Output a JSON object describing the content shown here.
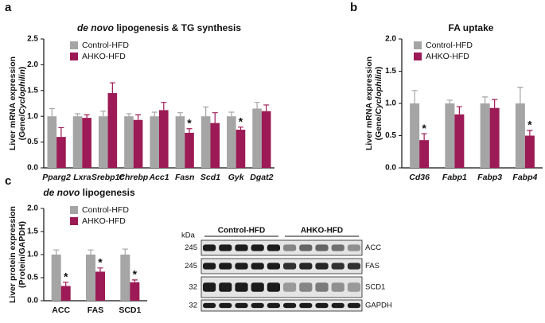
{
  "panel_labels": [
    "a",
    "b",
    "c"
  ],
  "chart_data": [
    {
      "type": "bar",
      "title_parts": [
        {
          "text": "de novo",
          "italic": true
        },
        {
          "text": " lipogenesis & TG synthesis"
        }
      ],
      "y_label_lines": [
        [
          {
            "text": "Liver mRNA expression"
          }
        ],
        [
          {
            "text": "(Gene/"
          },
          {
            "text": "Cyclophilin",
            "italic": true
          },
          {
            "text": ")"
          }
        ]
      ],
      "categories": [
        "Pparg2",
        "Lxra",
        "Srebp1c",
        "Chrebp",
        "Acc1",
        "Fasn",
        "Scd1",
        "Gyk",
        "Dgat2"
      ],
      "italic_categories": true,
      "series": [
        {
          "name": "Control-HFD",
          "color": "#a5a5a5",
          "values": [
            1.0,
            1.0,
            1.0,
            1.0,
            1.0,
            1.0,
            1.0,
            1.0,
            1.15
          ],
          "errors": [
            0.15,
            0.05,
            0.1,
            0.05,
            0.08,
            0.07,
            0.18,
            0.08,
            0.12
          ],
          "annotations": [
            null,
            null,
            null,
            null,
            null,
            null,
            null,
            null,
            null
          ]
        },
        {
          "name": "AHKO-HFD",
          "color": "#9c1a55",
          "values": [
            0.6,
            0.97,
            1.45,
            0.93,
            1.12,
            0.68,
            0.87,
            0.74,
            1.1
          ],
          "errors": [
            0.18,
            0.06,
            0.2,
            0.1,
            0.15,
            0.08,
            0.2,
            0.05,
            0.12
          ],
          "annotations": [
            null,
            null,
            null,
            null,
            null,
            "*",
            null,
            "*",
            null
          ]
        }
      ],
      "ylim": [
        0,
        2.5
      ],
      "yticks": [
        {
          "value": 0,
          "label": "0.0"
        },
        0.5,
        {
          "value": 1,
          "label": "1.0"
        },
        1.5,
        {
          "value": 2,
          "label": "2.0"
        },
        2.5
      ]
    },
    {
      "type": "bar",
      "title_parts": [
        {
          "text": "FA uptake"
        }
      ],
      "y_label_lines": [
        [
          {
            "text": "Liver mRNA expression"
          }
        ],
        [
          {
            "text": "(Gene/"
          },
          {
            "text": "Cyclophilin",
            "italic": true
          },
          {
            "text": ")"
          }
        ]
      ],
      "categories": [
        "Cd36",
        "Fabp1",
        "Fabp3",
        "Fabp4"
      ],
      "italic_categories": true,
      "series": [
        {
          "name": "Control-HFD",
          "color": "#a5a5a5",
          "values": [
            1.0,
            1.0,
            1.0,
            1.0
          ],
          "errors": [
            0.2,
            0.05,
            0.1,
            0.25
          ],
          "annotations": [
            null,
            null,
            null,
            null
          ]
        },
        {
          "name": "AHKO-HFD",
          "color": "#9c1a55",
          "values": [
            0.43,
            0.83,
            0.93,
            0.5
          ],
          "errors": [
            0.1,
            0.12,
            0.13,
            0.08
          ],
          "annotations": [
            "*",
            null,
            null,
            "*"
          ]
        }
      ],
      "ylim": [
        0,
        2
      ],
      "yticks": [
        {
          "value": 0,
          "label": "0.0"
        },
        0.5,
        {
          "value": 1,
          "label": "1.0"
        },
        1.5,
        {
          "value": 2,
          "label": "2.0"
        }
      ]
    },
    {
      "type": "bar",
      "title_parts": [
        {
          "text": "de novo",
          "italic": true
        },
        {
          "text": " lipogenesis"
        }
      ],
      "y_label_lines": [
        [
          {
            "text": "Liver protein expression"
          }
        ],
        [
          {
            "text": "(Protein/GAPDH)"
          }
        ]
      ],
      "categories": [
        "ACC",
        "FAS",
        "SCD1"
      ],
      "italic_categories": false,
      "series": [
        {
          "name": "Control-HFD",
          "color": "#a5a5a5",
          "values": [
            1.0,
            1.0,
            1.0
          ],
          "errors": [
            0.1,
            0.1,
            0.12
          ],
          "annotations": [
            null,
            null,
            null
          ]
        },
        {
          "name": "AHKO-HFD",
          "color": "#9c1a55",
          "values": [
            0.32,
            0.63,
            0.4
          ],
          "errors": [
            0.08,
            0.08,
            0.05
          ],
          "annotations": [
            "*",
            "*",
            "*"
          ]
        }
      ],
      "ylim": [
        0,
        2
      ],
      "yticks": [
        {
          "value": 0,
          "label": "0.0"
        },
        0.5,
        {
          "value": 1,
          "label": "1.0"
        },
        1.5,
        {
          "value": 2,
          "label": "2.0"
        }
      ]
    }
  ],
  "blot": {
    "unit": "kDa",
    "groups": [
      "Control-HFD",
      "AHKO-HFD"
    ],
    "rows": [
      {
        "marker": "245",
        "label": "ACC"
      },
      {
        "marker": "245",
        "label": "FAS"
      },
      {
        "marker": "32",
        "label": "SCD1"
      },
      {
        "marker": "32",
        "label": "GAPDH"
      }
    ]
  }
}
